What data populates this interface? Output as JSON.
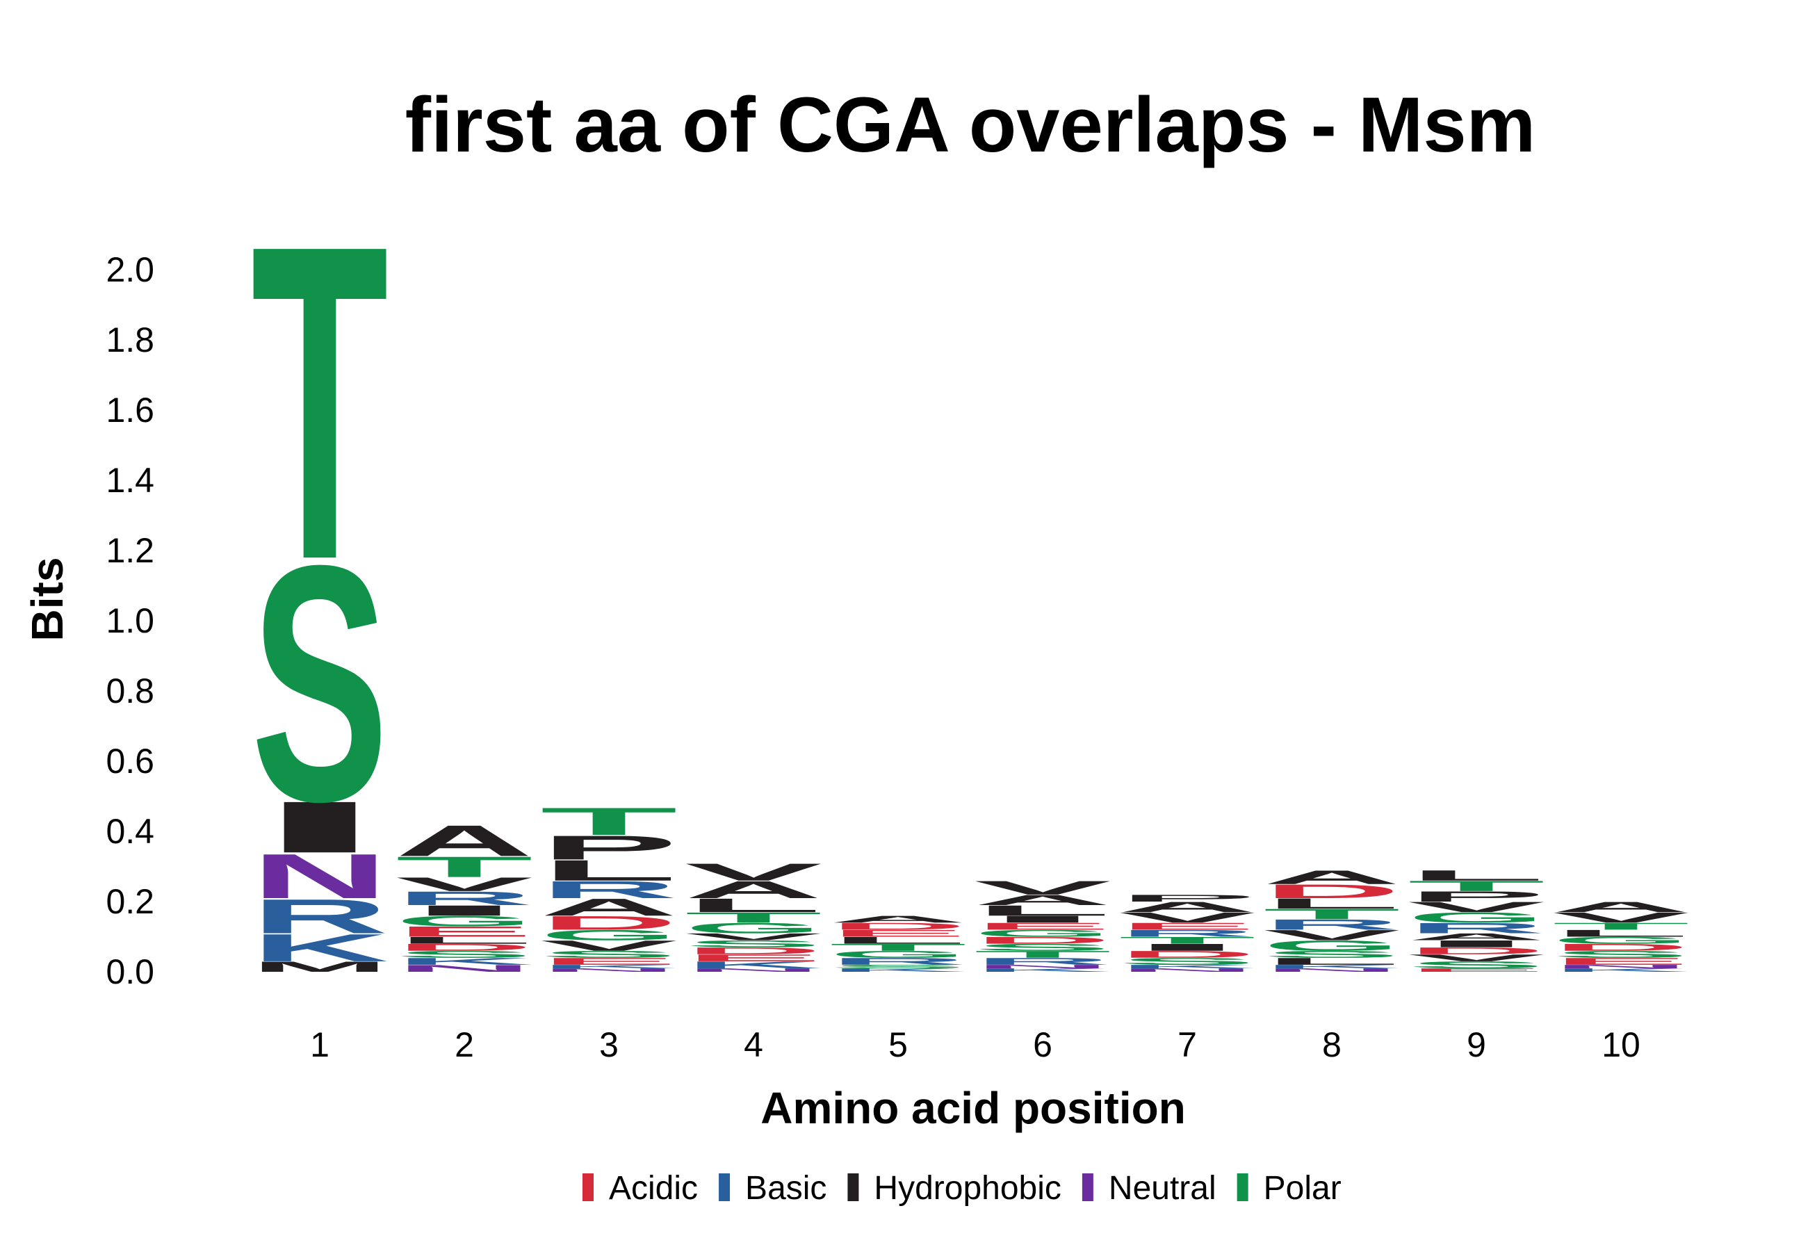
{
  "chart_data": {
    "type": "sequence-logo",
    "title": "first aa of CGA overlaps - Msm",
    "xlabel": "Amino acid position",
    "ylabel": "Bits",
    "ylim": [
      0,
      2.1
    ],
    "yticks": [
      "0.0",
      "0.2",
      "0.4",
      "0.6",
      "0.8",
      "1.0",
      "1.2",
      "1.4",
      "1.6",
      "1.8",
      "2.0"
    ],
    "positions": [
      "1",
      "2",
      "3",
      "4",
      "5",
      "6",
      "7",
      "8",
      "9",
      "10"
    ],
    "colors": {
      "Acidic": "#D62A3B",
      "Basic": "#2A5F9E",
      "Hydrophobic": "#231F20",
      "Neutral": "#6A2C9E",
      "Polar": "#10924A"
    },
    "legend": [
      {
        "name": "Acidic",
        "color": "#D62A3B"
      },
      {
        "name": "Basic",
        "color": "#2A5F9E"
      },
      {
        "name": "Hydrophobic",
        "color": "#231F20"
      },
      {
        "name": "Neutral",
        "color": "#6A2C9E"
      },
      {
        "name": "Polar",
        "color": "#10924A"
      }
    ],
    "stacks": [
      {
        "position": "1",
        "letters": [
          {
            "aa": "M",
            "class": "Hydrophobic",
            "bits": 0.03
          },
          {
            "aa": "K",
            "class": "Basic",
            "bits": 0.08
          },
          {
            "aa": "R",
            "class": "Basic",
            "bits": 0.1
          },
          {
            "aa": "N",
            "class": "Neutral",
            "bits": 0.13
          },
          {
            "aa": "I",
            "class": "Hydrophobic",
            "bits": 0.15
          },
          {
            "aa": "S",
            "class": "Polar",
            "bits": 0.69
          },
          {
            "aa": "T",
            "class": "Polar",
            "bits": 0.92
          }
        ]
      },
      {
        "position": "2",
        "letters": [
          {
            "aa": "N",
            "class": "Neutral",
            "bits": 0.02
          },
          {
            "aa": "K",
            "class": "Basic",
            "bits": 0.02
          },
          {
            "aa": "S",
            "class": "Polar",
            "bits": 0.02
          },
          {
            "aa": "D",
            "class": "Acidic",
            "bits": 0.02
          },
          {
            "aa": "L",
            "class": "Hydrophobic",
            "bits": 0.02
          },
          {
            "aa": "E",
            "class": "Acidic",
            "bits": 0.03
          },
          {
            "aa": "G",
            "class": "Polar",
            "bits": 0.03
          },
          {
            "aa": "I",
            "class": "Hydrophobic",
            "bits": 0.03
          },
          {
            "aa": "R",
            "class": "Basic",
            "bits": 0.04
          },
          {
            "aa": "V",
            "class": "Hydrophobic",
            "bits": 0.04
          },
          {
            "aa": "T",
            "class": "Polar",
            "bits": 0.06
          },
          {
            "aa": "A",
            "class": "Hydrophobic",
            "bits": 0.09
          }
        ]
      },
      {
        "position": "3",
        "letters": [
          {
            "aa": "N",
            "class": "Neutral",
            "bits": 0.01
          },
          {
            "aa": "K",
            "class": "Basic",
            "bits": 0.01
          },
          {
            "aa": "E",
            "class": "Acidic",
            "bits": 0.02
          },
          {
            "aa": "S",
            "class": "Polar",
            "bits": 0.02
          },
          {
            "aa": "V",
            "class": "Hydrophobic",
            "bits": 0.03
          },
          {
            "aa": "G",
            "class": "Polar",
            "bits": 0.03
          },
          {
            "aa": "D",
            "class": "Acidic",
            "bits": 0.04
          },
          {
            "aa": "A",
            "class": "Hydrophobic",
            "bits": 0.05
          },
          {
            "aa": "R",
            "class": "Basic",
            "bits": 0.05
          },
          {
            "aa": "L",
            "class": "Hydrophobic",
            "bits": 0.06
          },
          {
            "aa": "P",
            "class": "Hydrophobic",
            "bits": 0.07
          },
          {
            "aa": "T",
            "class": "Polar",
            "bits": 0.08
          }
        ]
      },
      {
        "position": "4",
        "letters": [
          {
            "aa": "N",
            "class": "Neutral",
            "bits": 0.01
          },
          {
            "aa": "K",
            "class": "Basic",
            "bits": 0.02
          },
          {
            "aa": "E",
            "class": "Acidic",
            "bits": 0.02
          },
          {
            "aa": "D",
            "class": "Acidic",
            "bits": 0.02
          },
          {
            "aa": "S",
            "class": "Polar",
            "bits": 0.02
          },
          {
            "aa": "V",
            "class": "Hydrophobic",
            "bits": 0.02
          },
          {
            "aa": "G",
            "class": "Polar",
            "bits": 0.03
          },
          {
            "aa": "T",
            "class": "Polar",
            "bits": 0.03
          },
          {
            "aa": "L",
            "class": "Hydrophobic",
            "bits": 0.04
          },
          {
            "aa": "A",
            "class": "Hydrophobic",
            "bits": 0.05
          },
          {
            "aa": "V",
            "class": "Hydrophobic",
            "bits": 0.05
          }
        ]
      },
      {
        "position": "5",
        "letters": [
          {
            "aa": "K",
            "class": "Basic",
            "bits": 0.01
          },
          {
            "aa": "S",
            "class": "Polar",
            "bits": 0.01
          },
          {
            "aa": "R",
            "class": "Basic",
            "bits": 0.02
          },
          {
            "aa": "G",
            "class": "Polar",
            "bits": 0.02
          },
          {
            "aa": "T",
            "class": "Polar",
            "bits": 0.02
          },
          {
            "aa": "L",
            "class": "Hydrophobic",
            "bits": 0.02
          },
          {
            "aa": "E",
            "class": "Acidic",
            "bits": 0.02
          },
          {
            "aa": "D",
            "class": "Acidic",
            "bits": 0.02
          },
          {
            "aa": "A",
            "class": "Hydrophobic",
            "bits": 0.02
          }
        ]
      },
      {
        "position": "6",
        "letters": [
          {
            "aa": "K",
            "class": "Basic",
            "bits": 0.01
          },
          {
            "aa": "N",
            "class": "Neutral",
            "bits": 0.01
          },
          {
            "aa": "R",
            "class": "Basic",
            "bits": 0.02
          },
          {
            "aa": "T",
            "class": "Polar",
            "bits": 0.02
          },
          {
            "aa": "S",
            "class": "Polar",
            "bits": 0.02
          },
          {
            "aa": "D",
            "class": "Acidic",
            "bits": 0.02
          },
          {
            "aa": "G",
            "class": "Polar",
            "bits": 0.02
          },
          {
            "aa": "E",
            "class": "Acidic",
            "bits": 0.02
          },
          {
            "aa": "I",
            "class": "Hydrophobic",
            "bits": 0.02
          },
          {
            "aa": "L",
            "class": "Hydrophobic",
            "bits": 0.03
          },
          {
            "aa": "A",
            "class": "Hydrophobic",
            "bits": 0.03
          },
          {
            "aa": "V",
            "class": "Hydrophobic",
            "bits": 0.04
          }
        ]
      },
      {
        "position": "7",
        "letters": [
          {
            "aa": "N",
            "class": "Neutral",
            "bits": 0.01
          },
          {
            "aa": "K",
            "class": "Basic",
            "bits": 0.01
          },
          {
            "aa": "S",
            "class": "Polar",
            "bits": 0.02
          },
          {
            "aa": "D",
            "class": "Acidic",
            "bits": 0.02
          },
          {
            "aa": "I",
            "class": "Hydrophobic",
            "bits": 0.02
          },
          {
            "aa": "T",
            "class": "Polar",
            "bits": 0.02
          },
          {
            "aa": "R",
            "class": "Basic",
            "bits": 0.02
          },
          {
            "aa": "E",
            "class": "Acidic",
            "bits": 0.02
          },
          {
            "aa": "V",
            "class": "Hydrophobic",
            "bits": 0.03
          },
          {
            "aa": "A",
            "class": "Hydrophobic",
            "bits": 0.03
          },
          {
            "aa": "P",
            "class": "Hydrophobic",
            "bits": 0.02
          }
        ]
      },
      {
        "position": "8",
        "letters": [
          {
            "aa": "N",
            "class": "Neutral",
            "bits": 0.01
          },
          {
            "aa": "K",
            "class": "Basic",
            "bits": 0.01
          },
          {
            "aa": "L",
            "class": "Hydrophobic",
            "bits": 0.02
          },
          {
            "aa": "S",
            "class": "Polar",
            "bits": 0.02
          },
          {
            "aa": "G",
            "class": "Polar",
            "bits": 0.03
          },
          {
            "aa": "V",
            "class": "Hydrophobic",
            "bits": 0.03
          },
          {
            "aa": "R",
            "class": "Basic",
            "bits": 0.03
          },
          {
            "aa": "T",
            "class": "Polar",
            "bits": 0.03
          },
          {
            "aa": "L",
            "class": "Hydrophobic",
            "bits": 0.03
          },
          {
            "aa": "D",
            "class": "Acidic",
            "bits": 0.04
          },
          {
            "aa": "A",
            "class": "Hydrophobic",
            "bits": 0.04
          }
        ]
      },
      {
        "position": "9",
        "letters": [
          {
            "aa": "E",
            "class": "Acidic",
            "bits": 0.01
          },
          {
            "aa": "S",
            "class": "Polar",
            "bits": 0.02
          },
          {
            "aa": "V",
            "class": "Hydrophobic",
            "bits": 0.02
          },
          {
            "aa": "D",
            "class": "Acidic",
            "bits": 0.02
          },
          {
            "aa": "I",
            "class": "Hydrophobic",
            "bits": 0.02
          },
          {
            "aa": "A",
            "class": "Hydrophobic",
            "bits": 0.02
          },
          {
            "aa": "R",
            "class": "Basic",
            "bits": 0.03
          },
          {
            "aa": "G",
            "class": "Polar",
            "bits": 0.03
          },
          {
            "aa": "V",
            "class": "Hydrophobic",
            "bits": 0.03
          },
          {
            "aa": "P",
            "class": "Hydrophobic",
            "bits": 0.03
          },
          {
            "aa": "T",
            "class": "Polar",
            "bits": 0.03
          },
          {
            "aa": "L",
            "class": "Hydrophobic",
            "bits": 0.03
          }
        ]
      },
      {
        "position": "10",
        "letters": [
          {
            "aa": "K",
            "class": "Basic",
            "bits": 0.01
          },
          {
            "aa": "N",
            "class": "Neutral",
            "bits": 0.01
          },
          {
            "aa": "E",
            "class": "Acidic",
            "bits": 0.02
          },
          {
            "aa": "S",
            "class": "Polar",
            "bits": 0.02
          },
          {
            "aa": "D",
            "class": "Acidic",
            "bits": 0.02
          },
          {
            "aa": "G",
            "class": "Polar",
            "bits": 0.02
          },
          {
            "aa": "L",
            "class": "Hydrophobic",
            "bits": 0.02
          },
          {
            "aa": "T",
            "class": "Polar",
            "bits": 0.02
          },
          {
            "aa": "V",
            "class": "Hydrophobic",
            "bits": 0.03
          },
          {
            "aa": "A",
            "class": "Hydrophobic",
            "bits": 0.03
          }
        ]
      }
    ]
  }
}
